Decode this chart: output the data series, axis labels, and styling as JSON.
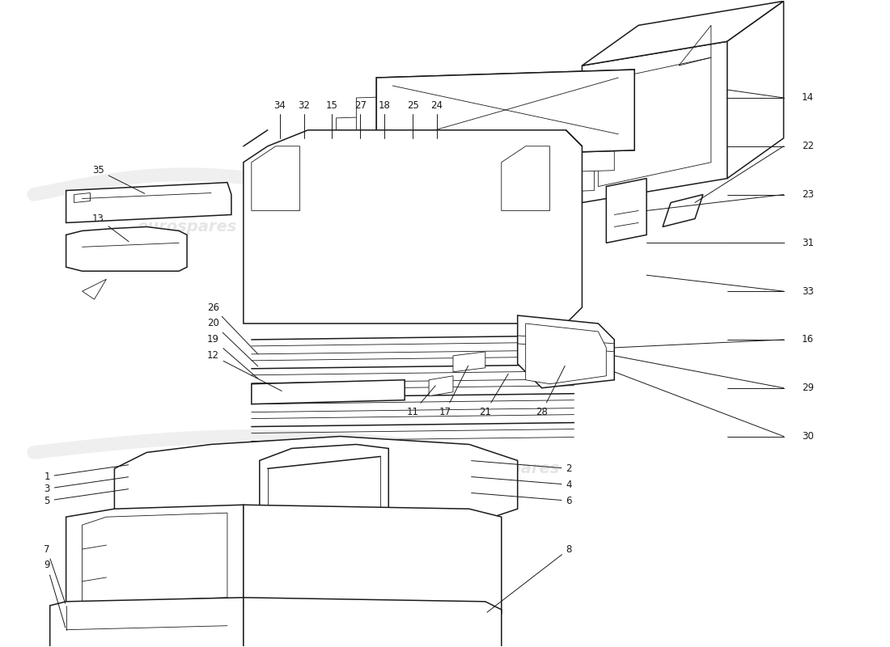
{
  "background_color": "#ffffff",
  "line_color": "#1a1a1a",
  "watermark_color": "#cccccc",
  "watermark_text": "eurospares",
  "label_fontsize": 8.5,
  "lw_main": 1.1,
  "lw_thin": 0.6
}
